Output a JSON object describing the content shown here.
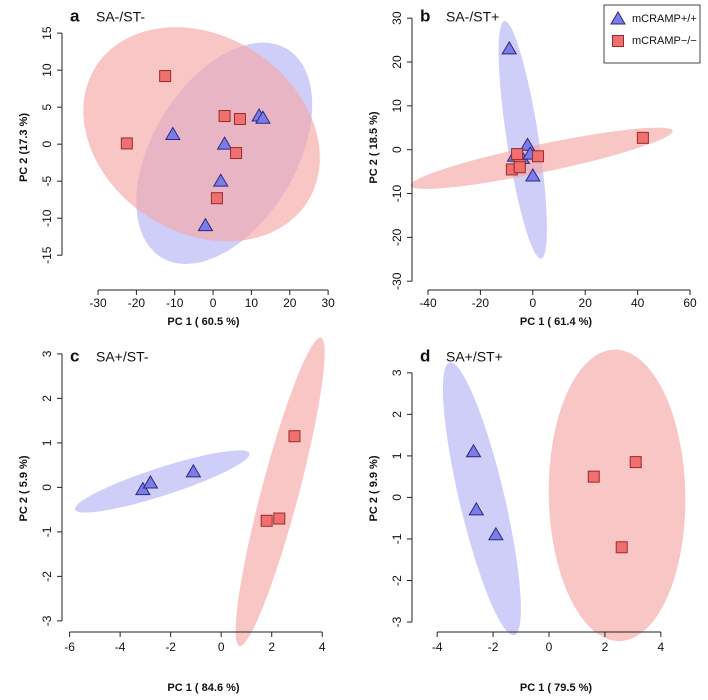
{
  "chart_data": [
    {
      "type": "scatter",
      "label": "a",
      "title": "SA-/ST-",
      "xlabel": "PC 1 ( 60.5 %)",
      "ylabel": "PC 2 (17.3 %)",
      "xlim": [
        -39.4,
        34.4
      ],
      "ylim": [
        -19.7,
        18.8
      ],
      "xticks": [
        -30,
        -20,
        -10,
        0,
        10,
        20,
        30
      ],
      "yticks": [
        -15,
        -10,
        -5,
        0,
        5,
        10,
        15
      ],
      "series": [
        {
          "marker": "triangle",
          "color": "#7b7bea",
          "x": [
            -10.5,
            3,
            12,
            13,
            2,
            -2
          ],
          "y": [
            1.3,
            0,
            3.8,
            3.5,
            -5,
            -11
          ]
        },
        {
          "marker": "square",
          "color": "#f07070",
          "x": [
            -12.5,
            -22.5,
            3,
            7,
            6,
            1
          ],
          "y": [
            9.2,
            0.1,
            3.8,
            3.4,
            -1.2,
            -7.3
          ]
        }
      ]
    },
    {
      "type": "scatter",
      "label": "b",
      "title": "SA-/ST+",
      "xlabel": "PC 1 ( 61.4 %)",
      "ylabel": "PC 2 ( 18.5 %)",
      "xlim": [
        -46.1,
        63.8
      ],
      "ylim": [
        -32,
        33
      ],
      "xticks": [
        -40,
        -20,
        0,
        20,
        40,
        60
      ],
      "yticks": [
        -30,
        -20,
        -10,
        0,
        10,
        20,
        30
      ],
      "legend": "top-right",
      "series": [
        {
          "name": "mCRAMP+/+",
          "marker": "triangle",
          "color": "#7b7bea",
          "x": [
            -9,
            -2,
            -7,
            -4,
            -1,
            0
          ],
          "y": [
            23,
            1,
            -1.5,
            -2,
            -1,
            -6
          ]
        },
        {
          "name": "mCRAMP−/−",
          "marker": "square",
          "color": "#f07070",
          "x": [
            -8,
            -5,
            -6,
            -5,
            2,
            42
          ],
          "y": [
            -4.5,
            -3.5,
            -1,
            -4,
            -1.5,
            2.7
          ]
        }
      ]
    },
    {
      "type": "scatter",
      "label": "c",
      "title": "SA+/ST-",
      "xlabel": "PC 1 ( 84.6 %)",
      "ylabel": "PC 2 ( 5.9 %)",
      "xlim": [
        -6.3,
        4.9
      ],
      "ylim": [
        -3.25,
        3.2
      ],
      "xticks": [
        -6,
        -4,
        -2,
        0,
        2,
        4
      ],
      "yticks": [
        -3,
        -2,
        -1,
        0,
        1,
        2,
        3
      ],
      "series": [
        {
          "marker": "triangle",
          "color": "#7b7bea",
          "x": [
            -3.1,
            -2.8,
            -1.1
          ],
          "y": [
            -0.05,
            0.1,
            0.35
          ]
        },
        {
          "marker": "square",
          "color": "#f07070",
          "x": [
            1.8,
            2.3,
            2.9
          ],
          "y": [
            -0.75,
            -0.7,
            1.15
          ]
        }
      ]
    },
    {
      "type": "scatter",
      "label": "d",
      "title": "SA+/ST+",
      "xlabel": "PC 1 ( 79.5 %)",
      "ylabel": "PC 2 ( 9.9 %)",
      "xlim": [
        -4.9,
        5.4
      ],
      "ylim": [
        -3.24,
        3.67
      ],
      "xticks": [
        -4,
        -2,
        0,
        2,
        4
      ],
      "yticks": [
        -3,
        -2,
        -1,
        0,
        1,
        2,
        3
      ],
      "series": [
        {
          "marker": "triangle",
          "color": "#7b7bea",
          "x": [
            -2.7,
            -2.6,
            -1.9
          ],
          "y": [
            1.1,
            -0.3,
            -0.9
          ]
        },
        {
          "marker": "square",
          "color": "#f07070",
          "x": [
            1.6,
            3.1,
            2.6
          ],
          "y": [
            0.5,
            0.85,
            -1.2
          ]
        }
      ]
    }
  ]
}
